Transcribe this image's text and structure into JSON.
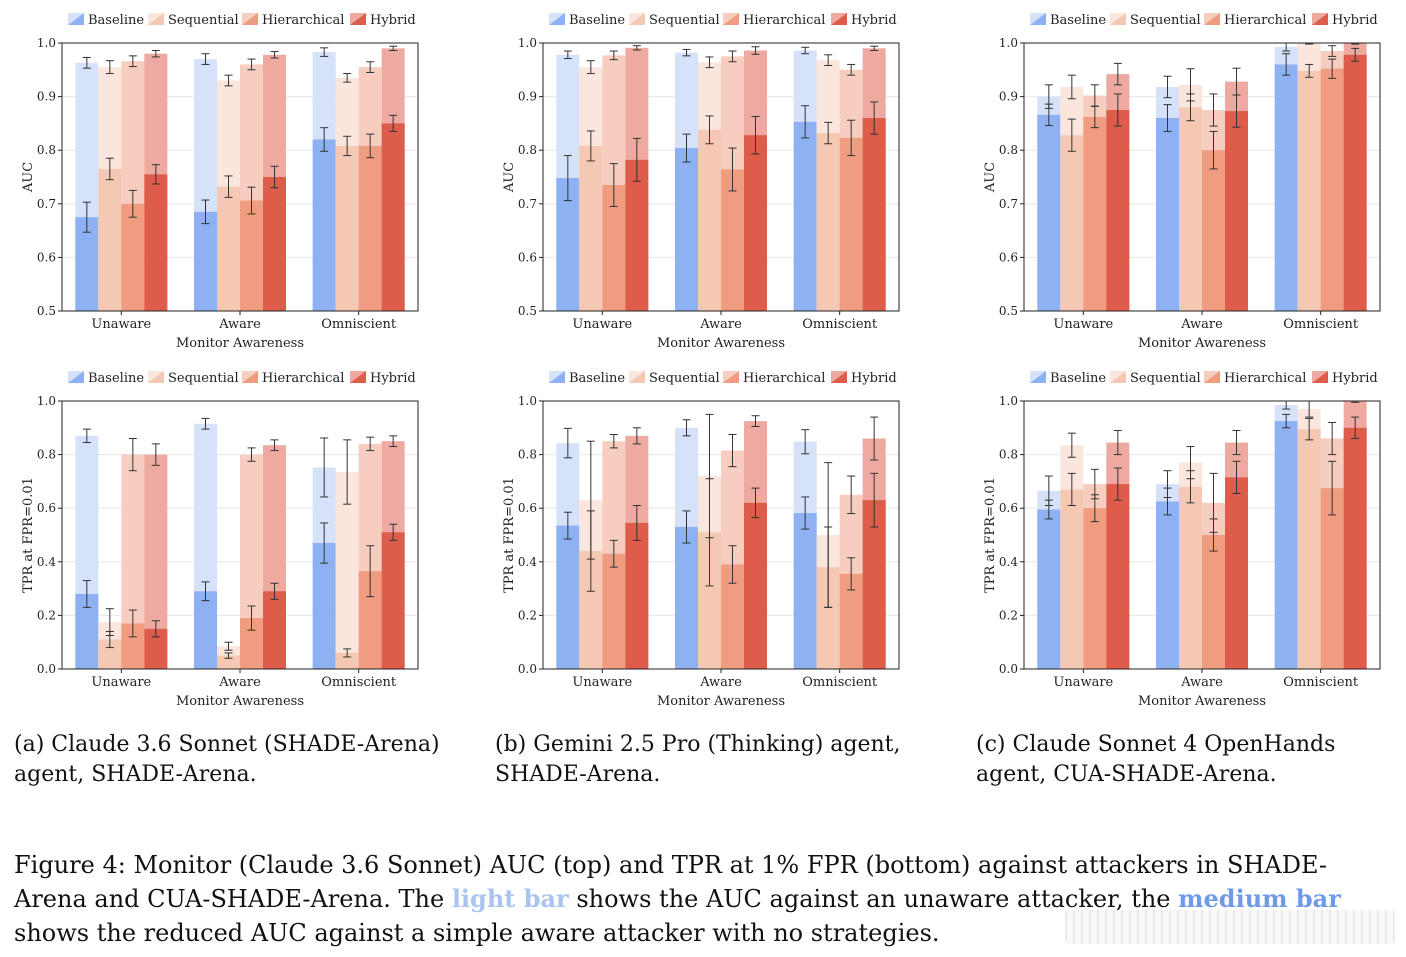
{
  "legend": [
    "Baseline",
    "Sequential",
    "Hierarchical",
    "Hybrid"
  ],
  "colors": {
    "Baseline": {
      "solid": "#8eb1f3",
      "light": "#d5e2fa"
    },
    "Sequential": {
      "solid": "#f4c8b2",
      "light": "#fae6dc"
    },
    "Hierarchical": {
      "solid": "#ef9c80",
      "light": "#f6cdbf"
    },
    "Hybrid": {
      "solid": "#dd5c4a",
      "light": "#eeaaa0"
    }
  },
  "chart_data": [
    {
      "id": "a-auc",
      "type": "bar",
      "ylabel": "AUC",
      "xlabel": "Monitor Awareness",
      "ylim": [
        0.5,
        1.0
      ],
      "yticks": [
        "0.5",
        "0.6",
        "0.7",
        "0.8",
        "0.9",
        "1.0"
      ],
      "categories": [
        "Unaware",
        "Aware",
        "Omniscient"
      ],
      "series": [
        {
          "name": "Baseline",
          "light": [
            0.963,
            0.97,
            0.983
          ],
          "solid": [
            0.675,
            0.685,
            0.82
          ],
          "err_light": [
            0.01,
            0.01,
            0.008
          ],
          "err_solid": [
            0.028,
            0.022,
            0.022
          ]
        },
        {
          "name": "Sequential",
          "light": [
            0.955,
            0.93,
            0.935
          ],
          "solid": [
            0.765,
            0.732,
            0.808
          ],
          "err_light": [
            0.012,
            0.01,
            0.008
          ],
          "err_solid": [
            0.02,
            0.02,
            0.018
          ]
        },
        {
          "name": "Hierarchical",
          "light": [
            0.966,
            0.96,
            0.955
          ],
          "solid": [
            0.7,
            0.706,
            0.808
          ],
          "err_light": [
            0.01,
            0.01,
            0.01
          ],
          "err_solid": [
            0.025,
            0.025,
            0.022
          ]
        },
        {
          "name": "Hybrid",
          "light": [
            0.98,
            0.978,
            0.99
          ],
          "solid": [
            0.755,
            0.75,
            0.85
          ],
          "err_light": [
            0.006,
            0.006,
            0.004
          ],
          "err_solid": [
            0.018,
            0.02,
            0.015
          ]
        }
      ]
    },
    {
      "id": "b-auc",
      "type": "bar",
      "ylabel": "AUC",
      "xlabel": "Monitor Awareness",
      "ylim": [
        0.5,
        1.0
      ],
      "yticks": [
        "0.5",
        "0.6",
        "0.7",
        "0.8",
        "0.9",
        "1.0"
      ],
      "categories": [
        "Unaware",
        "Aware",
        "Omniscient"
      ],
      "series": [
        {
          "name": "Baseline",
          "light": [
            0.978,
            0.982,
            0.986
          ],
          "solid": [
            0.748,
            0.804,
            0.853
          ],
          "err_light": [
            0.007,
            0.006,
            0.006
          ],
          "err_solid": [
            0.042,
            0.026,
            0.03
          ]
        },
        {
          "name": "Sequential",
          "light": [
            0.955,
            0.964,
            0.968
          ],
          "solid": [
            0.808,
            0.838,
            0.832
          ],
          "err_light": [
            0.012,
            0.01,
            0.01
          ],
          "err_solid": [
            0.028,
            0.026,
            0.02
          ]
        },
        {
          "name": "Hierarchical",
          "light": [
            0.977,
            0.975,
            0.95
          ],
          "solid": [
            0.735,
            0.764,
            0.823
          ],
          "err_light": [
            0.008,
            0.01,
            0.01
          ],
          "err_solid": [
            0.04,
            0.04,
            0.033
          ]
        },
        {
          "name": "Hybrid",
          "light": [
            0.991,
            0.986,
            0.99
          ],
          "solid": [
            0.782,
            0.828,
            0.86
          ],
          "err_light": [
            0.004,
            0.007,
            0.004
          ],
          "err_solid": [
            0.04,
            0.035,
            0.03
          ]
        }
      ]
    },
    {
      "id": "c-auc",
      "type": "bar",
      "ylabel": "AUC",
      "xlabel": "Monitor Awareness",
      "ylim": [
        0.5,
        1.0
      ],
      "yticks": [
        "0.5",
        "0.6",
        "0.7",
        "0.8",
        "0.9",
        "1.0"
      ],
      "categories": [
        "Unaware",
        "Aware",
        "Omniscient"
      ],
      "series": [
        {
          "name": "Baseline",
          "light": [
            0.9,
            0.918,
            0.993
          ],
          "solid": [
            0.866,
            0.86,
            0.96
          ],
          "err_light": [
            0.022,
            0.02,
            0.008
          ],
          "err_solid": [
            0.02,
            0.025,
            0.02
          ]
        },
        {
          "name": "Sequential",
          "light": [
            0.918,
            0.922,
            1.0
          ],
          "solid": [
            0.828,
            0.88,
            0.948
          ],
          "err_light": [
            0.022,
            0.03,
            0.002
          ],
          "err_solid": [
            0.03,
            0.025,
            0.012
          ]
        },
        {
          "name": "Hierarchical",
          "light": [
            0.902,
            0.875,
            0.985
          ],
          "solid": [
            0.862,
            0.8,
            0.952
          ],
          "err_light": [
            0.02,
            0.03,
            0.01
          ],
          "err_solid": [
            0.02,
            0.035,
            0.018
          ]
        },
        {
          "name": "Hybrid",
          "light": [
            0.942,
            0.928,
            1.0
          ],
          "solid": [
            0.875,
            0.873,
            0.978
          ],
          "err_light": [
            0.02,
            0.025,
            0.002
          ],
          "err_solid": [
            0.03,
            0.03,
            0.012
          ]
        }
      ]
    },
    {
      "id": "a-tpr",
      "type": "bar",
      "ylabel": "TPR at FPR=0.01",
      "xlabel": "Monitor Awareness",
      "ylim": [
        0.0,
        1.0
      ],
      "yticks": [
        "0.0",
        "0.2",
        "0.4",
        "0.6",
        "0.8",
        "1.0"
      ],
      "categories": [
        "Unaware",
        "Aware",
        "Omniscient"
      ],
      "series": [
        {
          "name": "Baseline",
          "light": [
            0.87,
            0.915,
            0.752
          ],
          "solid": [
            0.28,
            0.29,
            0.47
          ],
          "err_light": [
            0.025,
            0.02,
            0.11
          ],
          "err_solid": [
            0.05,
            0.035,
            0.075
          ]
        },
        {
          "name": "Sequential",
          "light": [
            0.175,
            0.085,
            0.735
          ],
          "solid": [
            0.11,
            0.05,
            0.06
          ],
          "err_light": [
            0.05,
            0.015,
            0.12
          ],
          "err_solid": [
            0.03,
            0.01,
            0.015
          ]
        },
        {
          "name": "Hierarchical",
          "light": [
            0.8,
            0.8,
            0.84
          ],
          "solid": [
            0.17,
            0.19,
            0.365
          ],
          "err_light": [
            0.06,
            0.025,
            0.025
          ],
          "err_solid": [
            0.05,
            0.045,
            0.095
          ]
        },
        {
          "name": "Hybrid",
          "light": [
            0.8,
            0.835,
            0.85
          ],
          "solid": [
            0.15,
            0.29,
            0.51
          ],
          "err_light": [
            0.04,
            0.02,
            0.02
          ],
          "err_solid": [
            0.03,
            0.03,
            0.03
          ]
        }
      ]
    },
    {
      "id": "b-tpr",
      "type": "bar",
      "ylabel": "TPR at FPR=0.01",
      "xlabel": "Monitor Awareness",
      "ylim": [
        0.0,
        1.0
      ],
      "yticks": [
        "0.0",
        "0.2",
        "0.4",
        "0.6",
        "0.8",
        "1.0"
      ],
      "categories": [
        "Unaware",
        "Aware",
        "Omniscient"
      ],
      "series": [
        {
          "name": "Baseline",
          "light": [
            0.843,
            0.9,
            0.848
          ],
          "solid": [
            0.535,
            0.53,
            0.582
          ],
          "err_light": [
            0.055,
            0.03,
            0.045
          ],
          "err_solid": [
            0.05,
            0.06,
            0.06
          ]
        },
        {
          "name": "Sequential",
          "light": [
            0.63,
            0.72,
            0.5
          ],
          "solid": [
            0.44,
            0.51,
            0.38
          ],
          "err_light": [
            0.22,
            0.23,
            0.27
          ],
          "err_solid": [
            0.15,
            0.2,
            0.15
          ]
        },
        {
          "name": "Hierarchical",
          "light": [
            0.85,
            0.815,
            0.65
          ],
          "solid": [
            0.43,
            0.39,
            0.355
          ],
          "err_light": [
            0.025,
            0.06,
            0.07
          ],
          "err_solid": [
            0.05,
            0.07,
            0.06
          ]
        },
        {
          "name": "Hybrid",
          "light": [
            0.87,
            0.925,
            0.86
          ],
          "solid": [
            0.545,
            0.62,
            0.63
          ],
          "err_light": [
            0.03,
            0.02,
            0.08
          ],
          "err_solid": [
            0.065,
            0.055,
            0.1
          ]
        }
      ]
    },
    {
      "id": "c-tpr",
      "type": "bar",
      "ylabel": "TPR at FPR=0.01",
      "xlabel": "Monitor Awareness",
      "ylim": [
        0.0,
        1.0
      ],
      "yticks": [
        "0.0",
        "0.2",
        "0.4",
        "0.6",
        "0.8",
        "1.0"
      ],
      "categories": [
        "Unaware",
        "Aware",
        "Omniscient"
      ],
      "series": [
        {
          "name": "Baseline",
          "light": [
            0.665,
            0.69,
            0.985
          ],
          "solid": [
            0.595,
            0.625,
            0.925
          ],
          "err_light": [
            0.055,
            0.05,
            0.015
          ],
          "err_solid": [
            0.035,
            0.05,
            0.025
          ]
        },
        {
          "name": "Sequential",
          "light": [
            0.835,
            0.77,
            0.97
          ],
          "solid": [
            0.67,
            0.68,
            0.895
          ],
          "err_light": [
            0.045,
            0.06,
            0.03
          ],
          "err_solid": [
            0.06,
            0.06,
            0.04
          ]
        },
        {
          "name": "Hierarchical",
          "light": [
            0.69,
            0.62,
            0.86
          ],
          "solid": [
            0.6,
            0.5,
            0.675
          ],
          "err_light": [
            0.055,
            0.11,
            0.06
          ],
          "err_solid": [
            0.05,
            0.06,
            0.1
          ]
        },
        {
          "name": "Hybrid",
          "light": [
            0.845,
            0.845,
            1.0
          ],
          "solid": [
            0.69,
            0.715,
            0.9
          ],
          "err_light": [
            0.045,
            0.045,
            0.005
          ],
          "err_solid": [
            0.06,
            0.06,
            0.04
          ]
        }
      ]
    }
  ],
  "captions": {
    "a": "(a) Claude 3.6 Sonnet (SHADE-Arena) agent, SHADE-Arena.",
    "b": "(b) Gemini 2.5 Pro (Thinking) agent, SHADE-Arena.",
    "c": "(c) Claude Sonnet 4 OpenHands agent, CUA-SHADE-Arena."
  },
  "figure_caption": {
    "part1": "Figure 4: Monitor (Claude 3.6 Sonnet) AUC (top) and TPR at 1% FPR (bottom) against attackers in SHADE-Arena and CUA-SHADE-Arena. The ",
    "light_text": "light bar",
    "part2": " shows the AUC against an unaware attacker, the ",
    "medium_text": "medium bar",
    "part3": " shows the reduced AUC against a simple aware attacker with no strategies."
  }
}
